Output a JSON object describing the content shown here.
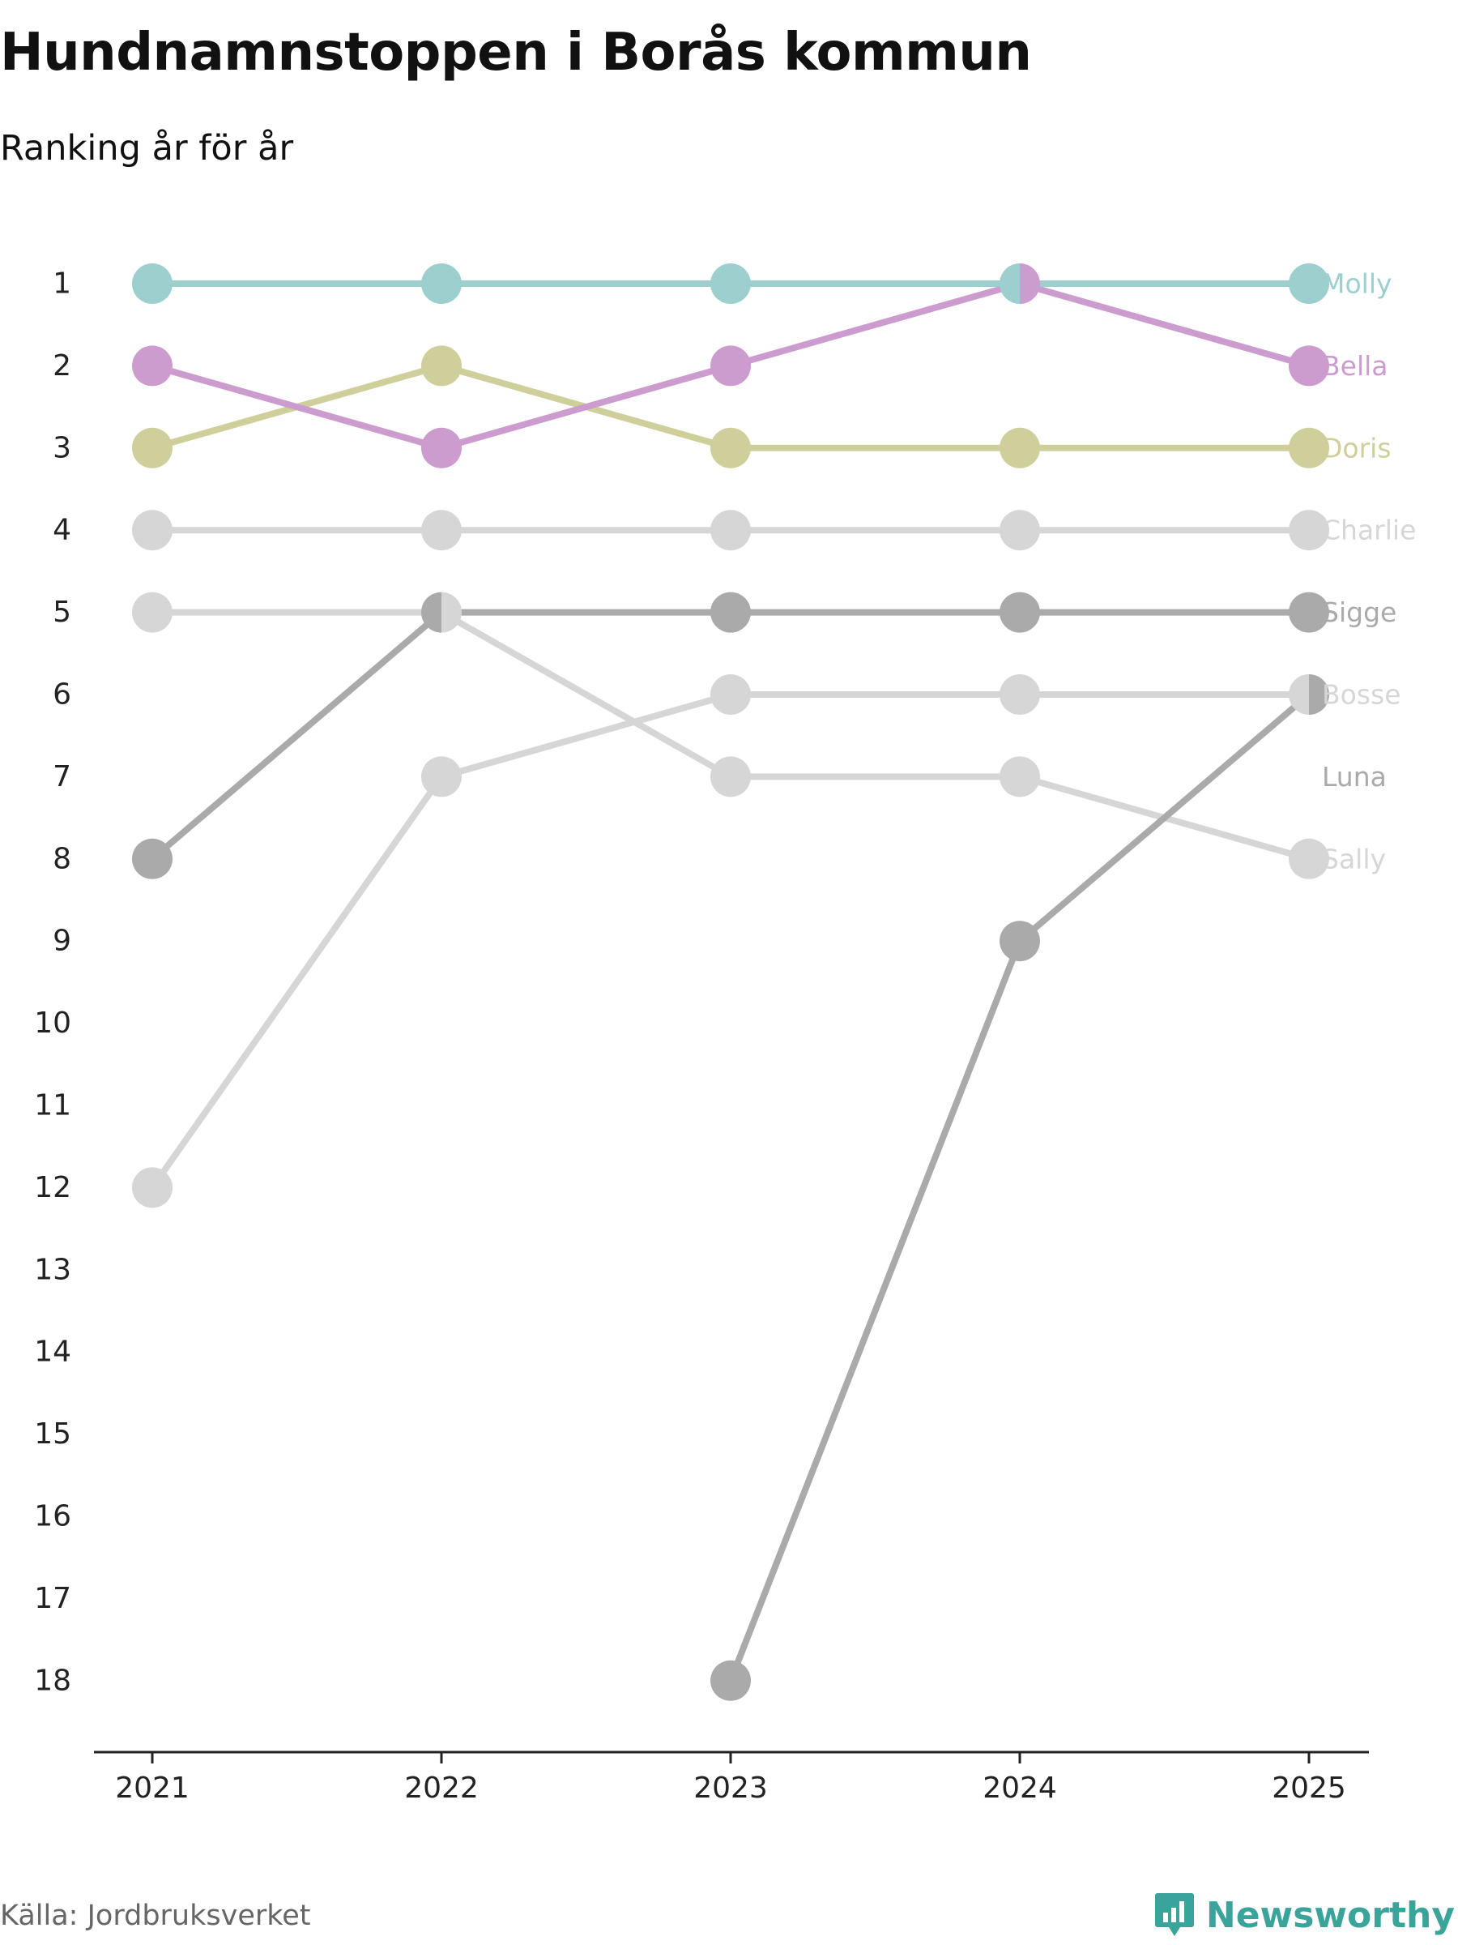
{
  "header": {
    "title": "Hundnamnstoppen i Borås kommun",
    "subtitle": "Ranking år för år"
  },
  "footer": {
    "source": "Källa: Jordbruksverket",
    "brand": "Newsworthy",
    "brand_icon": "bar-chart-logo-icon"
  },
  "colors": {
    "molly": "#9ccfce",
    "bella": "#cc9ccf",
    "doris": "#cfcf9c",
    "light_grey": "#d6d6d6",
    "dark_grey": "#aaaaaa",
    "axis": "#222222",
    "brand": "#3aa39a"
  },
  "chart_data": {
    "type": "line",
    "title": "Hundnamnstoppen i Borås kommun",
    "subtitle": "Ranking år för år",
    "xlabel": "",
    "ylabel": "",
    "x": [
      "2021",
      "2022",
      "2023",
      "2024",
      "2025"
    ],
    "y_ticks": [
      1,
      2,
      3,
      4,
      5,
      6,
      7,
      8,
      9,
      10,
      11,
      12,
      13,
      14,
      15,
      16,
      17,
      18
    ],
    "ylim": [
      1,
      18
    ],
    "y_inverted": true,
    "grid": false,
    "legend": "direct labels at right end",
    "series": [
      {
        "name": "Molly",
        "color": "#9ccfce",
        "values": [
          1,
          1,
          1,
          1,
          1
        ]
      },
      {
        "name": "Bella",
        "color": "#cc9ccf",
        "values": [
          2,
          3,
          2,
          1,
          2
        ]
      },
      {
        "name": "Doris",
        "color": "#cfcf9c",
        "values": [
          3,
          2,
          3,
          3,
          3
        ]
      },
      {
        "name": "Charlie",
        "color": "#d6d6d6",
        "values": [
          4,
          4,
          4,
          4,
          4
        ]
      },
      {
        "name": "Sigge",
        "color": "#aaaaaa",
        "values": [
          8,
          5,
          5,
          5,
          5
        ]
      },
      {
        "name": "Bosse",
        "color": "#d6d6d6",
        "values": [
          12,
          7,
          6,
          6,
          6
        ]
      },
      {
        "name": "Luna",
        "color": "#aaaaaa",
        "values": [
          null,
          null,
          18,
          9,
          6
        ]
      },
      {
        "name": "Sally",
        "color": "#d6d6d6",
        "values": [
          5,
          5,
          7,
          7,
          8
        ]
      }
    ],
    "label_ranks": {
      "Molly": 1,
      "Bella": 2,
      "Doris": 3,
      "Charlie": 4,
      "Sigge": 5,
      "Bosse": 6,
      "Luna": 7,
      "Sally": 8
    }
  }
}
